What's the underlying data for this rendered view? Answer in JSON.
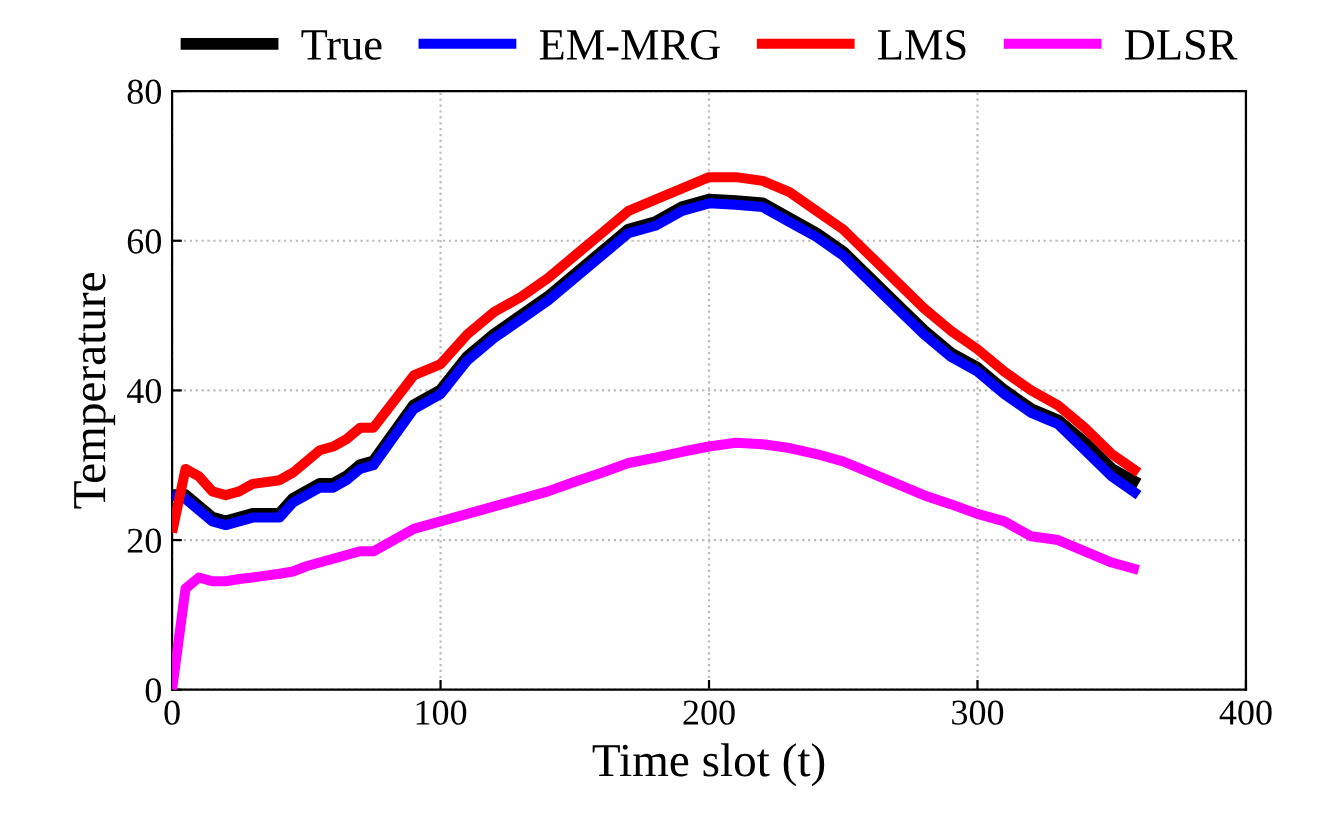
{
  "chart_data": {
    "type": "line",
    "xlabel": "Time slot (t)",
    "ylabel": "Temperature",
    "x": [
      0,
      5,
      10,
      15,
      20,
      25,
      30,
      40,
      45,
      50,
      55,
      60,
      65,
      70,
      75,
      90,
      100,
      110,
      120,
      130,
      140,
      150,
      160,
      170,
      180,
      190,
      200,
      210,
      220,
      230,
      240,
      250,
      260,
      270,
      280,
      290,
      300,
      310,
      320,
      330,
      340,
      350,
      360
    ],
    "series": [
      {
        "name": "True",
        "color": "#000000",
        "values": [
          26,
          26,
          24.5,
          23,
          22.5,
          23,
          23.5,
          23.5,
          25.5,
          26.5,
          27.5,
          27.5,
          28.5,
          30,
          30.5,
          38,
          40,
          44.5,
          47.5,
          50,
          52.5,
          55.5,
          58.5,
          61.5,
          62.5,
          64.5,
          65.5,
          65.3,
          65,
          63,
          61,
          58.5,
          55,
          51.5,
          48,
          45,
          43,
          40,
          37.5,
          36,
          33,
          29.5,
          27.5
        ]
      },
      {
        "name": "EM-MRG",
        "color": "#0000ff",
        "values": [
          26,
          25.5,
          24,
          22.5,
          22,
          22.5,
          23,
          23,
          25,
          26,
          27,
          27,
          28,
          29.5,
          30,
          37.5,
          39.5,
          44,
          47,
          49.5,
          52,
          55,
          58,
          61,
          62,
          64,
          65,
          64.8,
          64.5,
          62.5,
          60.5,
          58,
          54.5,
          51,
          47.5,
          44.5,
          42.5,
          39.5,
          37,
          35.5,
          32,
          28.5,
          26
        ]
      },
      {
        "name": "LMS",
        "color": "#ff0000",
        "values": [
          21,
          29.5,
          28.5,
          26.5,
          26,
          26.5,
          27.5,
          28,
          29,
          30.5,
          32,
          32.5,
          33.5,
          35,
          35,
          42,
          43.5,
          47.5,
          50.5,
          52.5,
          55,
          58,
          61,
          64,
          65.5,
          67,
          68.5,
          68.5,
          68,
          66.5,
          64,
          61.5,
          58,
          54.5,
          51,
          48,
          45.5,
          42.5,
          40,
          38,
          35,
          31.5,
          29
        ]
      },
      {
        "name": "DLSR",
        "color": "#ff00ff",
        "values": [
          0,
          13.5,
          15,
          14.5,
          14.5,
          14.8,
          15,
          15.5,
          15.8,
          16.5,
          17,
          17.5,
          18,
          18.5,
          18.5,
          21.5,
          22.5,
          23.5,
          24.5,
          25.5,
          26.5,
          27.8,
          29,
          30.3,
          31,
          31.8,
          32.5,
          33,
          32.8,
          32.3,
          31.5,
          30.5,
          29,
          27.5,
          26,
          24.8,
          23.5,
          22.5,
          20.5,
          20,
          18.5,
          17,
          16
        ]
      }
    ],
    "xlim": [
      0,
      400
    ],
    "xticks": [
      0,
      100,
      200,
      300,
      400
    ],
    "ylim": [
      0,
      80
    ],
    "yticks": [
      0,
      20,
      40,
      60,
      80
    ],
    "grid": true,
    "legend": "top",
    "line_style": "solid",
    "marker": "none"
  }
}
